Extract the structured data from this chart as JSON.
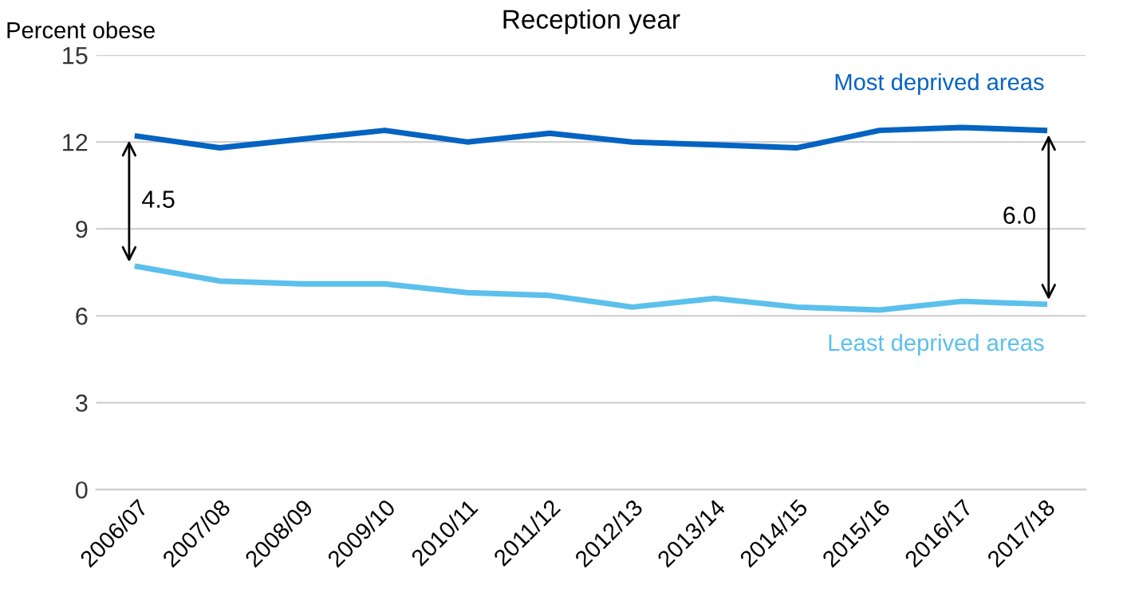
{
  "chart_data": {
    "type": "line",
    "title": "Reception year",
    "ylabel": "Percent obese",
    "categories": [
      "2006/07",
      "2007/08",
      "2008/09",
      "2009/10",
      "2010/11",
      "2011/12",
      "2012/13",
      "2013/14",
      "2014/15",
      "2015/16",
      "2016/17",
      "2017/18"
    ],
    "series": [
      {
        "name": "Most deprived areas",
        "color": "#0563c1",
        "values": [
          12.2,
          11.8,
          12.1,
          12.4,
          12.0,
          12.3,
          12.0,
          11.9,
          11.8,
          12.4,
          12.5,
          12.4
        ]
      },
      {
        "name": "Least deprived areas",
        "color": "#5bc0eb",
        "values": [
          7.7,
          7.2,
          7.1,
          7.1,
          6.8,
          6.7,
          6.3,
          6.6,
          6.3,
          6.2,
          6.5,
          6.4
        ]
      }
    ],
    "ylim": [
      0,
      15
    ],
    "yticks": [
      0,
      3,
      6,
      9,
      12,
      15
    ],
    "grid": "y",
    "legend": false,
    "marker": "none",
    "line_style": "solid",
    "annotations": [
      "4.5",
      "6.0"
    ]
  }
}
